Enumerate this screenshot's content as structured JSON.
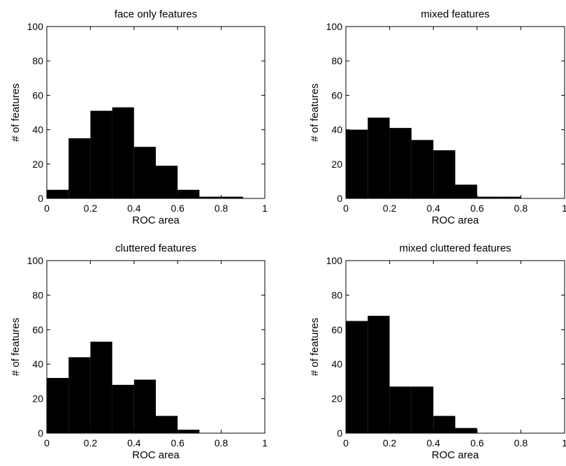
{
  "chart_data": [
    {
      "type": "bar",
      "title": "face only features",
      "xlabel": "ROC area",
      "ylabel": "# of features",
      "xlim": [
        0,
        1
      ],
      "ylim": [
        0,
        100
      ],
      "xticks": [
        "0",
        "0.2",
        "0.4",
        "0.6",
        "0.8",
        "1"
      ],
      "yticks": [
        "0",
        "20",
        "40",
        "60",
        "80",
        "100"
      ],
      "bins": [
        [
          0.0,
          0.1
        ],
        [
          0.1,
          0.2
        ],
        [
          0.2,
          0.3
        ],
        [
          0.3,
          0.4
        ],
        [
          0.4,
          0.5
        ],
        [
          0.5,
          0.6
        ],
        [
          0.6,
          0.7
        ],
        [
          0.7,
          0.8
        ],
        [
          0.8,
          0.9
        ],
        [
          0.9,
          1.0
        ]
      ],
      "values": [
        5,
        35,
        51,
        53,
        30,
        19,
        5,
        1,
        1,
        0
      ],
      "grid": false
    },
    {
      "type": "bar",
      "title": "mixed features",
      "xlabel": "ROC area",
      "ylabel": "# of features",
      "xlim": [
        0,
        1
      ],
      "ylim": [
        0,
        100
      ],
      "xticks": [
        "0",
        "0.2",
        "0.4",
        "0.6",
        "0.8",
        "1"
      ],
      "yticks": [
        "0",
        "20",
        "40",
        "60",
        "80",
        "100"
      ],
      "bins": [
        [
          0.0,
          0.1
        ],
        [
          0.1,
          0.2
        ],
        [
          0.2,
          0.3
        ],
        [
          0.3,
          0.4
        ],
        [
          0.4,
          0.5
        ],
        [
          0.5,
          0.6
        ],
        [
          0.6,
          0.7
        ],
        [
          0.7,
          0.8
        ],
        [
          0.8,
          0.9
        ],
        [
          0.9,
          1.0
        ]
      ],
      "values": [
        40,
        47,
        41,
        34,
        28,
        8,
        1,
        1,
        0,
        0
      ],
      "grid": false
    },
    {
      "type": "bar",
      "title": "cluttered features",
      "xlabel": "ROC area",
      "ylabel": "# of features",
      "xlim": [
        0,
        1
      ],
      "ylim": [
        0,
        100
      ],
      "xticks": [
        "0",
        "0.2",
        "0.4",
        "0.6",
        "0.8",
        "1"
      ],
      "yticks": [
        "0",
        "20",
        "40",
        "60",
        "80",
        "100"
      ],
      "bins": [
        [
          0.0,
          0.1
        ],
        [
          0.1,
          0.2
        ],
        [
          0.2,
          0.3
        ],
        [
          0.3,
          0.4
        ],
        [
          0.4,
          0.5
        ],
        [
          0.5,
          0.6
        ],
        [
          0.6,
          0.7
        ],
        [
          0.7,
          0.8
        ],
        [
          0.8,
          0.9
        ],
        [
          0.9,
          1.0
        ]
      ],
      "values": [
        32,
        44,
        53,
        28,
        31,
        10,
        2,
        0,
        0,
        0
      ],
      "grid": false
    },
    {
      "type": "bar",
      "title": "mixed cluttered features",
      "xlabel": "ROC area",
      "ylabel": "# of features",
      "xlim": [
        0,
        1
      ],
      "ylim": [
        0,
        100
      ],
      "xticks": [
        "0",
        "0.2",
        "0.4",
        "0.6",
        "0.8",
        "1"
      ],
      "yticks": [
        "0",
        "20",
        "40",
        "60",
        "80",
        "100"
      ],
      "bins": [
        [
          0.0,
          0.1
        ],
        [
          0.1,
          0.2
        ],
        [
          0.2,
          0.3
        ],
        [
          0.3,
          0.4
        ],
        [
          0.4,
          0.5
        ],
        [
          0.5,
          0.6
        ],
        [
          0.6,
          0.7
        ],
        [
          0.7,
          0.8
        ],
        [
          0.8,
          0.9
        ],
        [
          0.9,
          1.0
        ]
      ],
      "values": [
        65,
        68,
        27,
        27,
        10,
        3,
        0,
        0,
        0,
        0
      ],
      "grid": false
    }
  ]
}
